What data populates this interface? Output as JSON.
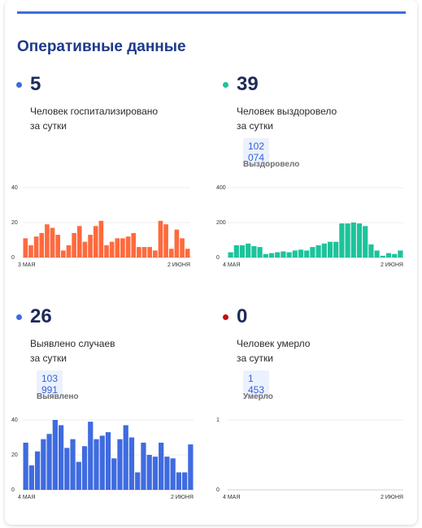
{
  "header": {
    "title": "Оперативные данные"
  },
  "cards": [
    {
      "value": "5",
      "label_line1": "Человек госпитализировано",
      "label_line2": "за сутки",
      "dot_color": "#3f6be0"
    },
    {
      "value": "39",
      "label_line1": "Человек выздоровело",
      "label_line2": "за сутки",
      "total": "102 074",
      "total_label": "Выздоровело",
      "dot_color": "#1dc39b"
    },
    {
      "value": "26",
      "label_line1": "Выявлено случаев",
      "label_line2": "за сутки",
      "total": "103 991",
      "total_label": "Выявлено",
      "dot_color": "#3f6be0"
    },
    {
      "value": "0",
      "label_line1": "Человек умерло",
      "label_line2": "за сутки",
      "total": "1 453",
      "total_label": "Умерло",
      "dot_color": "#c40f0f"
    }
  ],
  "chart_data": [
    {
      "type": "bar",
      "color": "#ff6a3d",
      "x_start_label": "3 МАЯ",
      "x_end_label": "2 ИЮНЯ",
      "ylim": [
        0,
        40
      ],
      "yticks": [
        0,
        20,
        40
      ],
      "values": [
        11,
        7,
        12,
        14,
        19,
        17,
        13,
        4,
        7,
        14,
        18,
        9,
        13,
        18,
        21,
        7,
        9,
        11,
        11,
        12,
        14,
        6,
        6,
        6,
        4,
        21,
        19,
        5,
        16,
        11,
        5
      ]
    },
    {
      "type": "bar",
      "color": "#1dc39b",
      "x_start_label": "4 МАЯ",
      "x_end_label": "2 ИЮНЯ",
      "ylim": [
        0,
        400
      ],
      "yticks": [
        0,
        200,
        400
      ],
      "values": [
        30,
        70,
        70,
        80,
        65,
        60,
        20,
        25,
        30,
        35,
        30,
        40,
        45,
        40,
        60,
        70,
        80,
        90,
        90,
        195,
        195,
        200,
        195,
        180,
        75,
        40,
        10,
        25,
        20,
        40
      ]
    },
    {
      "type": "bar",
      "color": "#3f6be0",
      "x_start_label": "4 МАЯ",
      "x_end_label": "2 ИЮНЯ",
      "ylim": [
        0,
        40
      ],
      "yticks": [
        0,
        20,
        40
      ],
      "values": [
        27,
        14,
        22,
        29,
        32,
        40,
        37,
        24,
        29,
        16,
        25,
        39,
        29,
        31,
        33,
        18,
        29,
        37,
        30,
        10,
        27,
        20,
        19,
        27,
        19,
        18,
        10,
        10,
        26
      ]
    },
    {
      "type": "bar",
      "color": "#c40f0f",
      "x_start_label": "4 МАЯ",
      "x_end_label": "2 ИЮНЯ",
      "ylim": [
        0,
        1
      ],
      "yticks": [
        0,
        1
      ],
      "values": [
        0,
        0,
        0,
        0,
        0,
        0,
        0,
        0,
        0,
        0,
        0,
        0,
        0,
        0,
        0,
        0,
        0,
        0,
        0,
        0,
        0,
        0,
        0,
        0,
        0,
        0,
        0,
        0,
        0,
        0
      ]
    }
  ]
}
